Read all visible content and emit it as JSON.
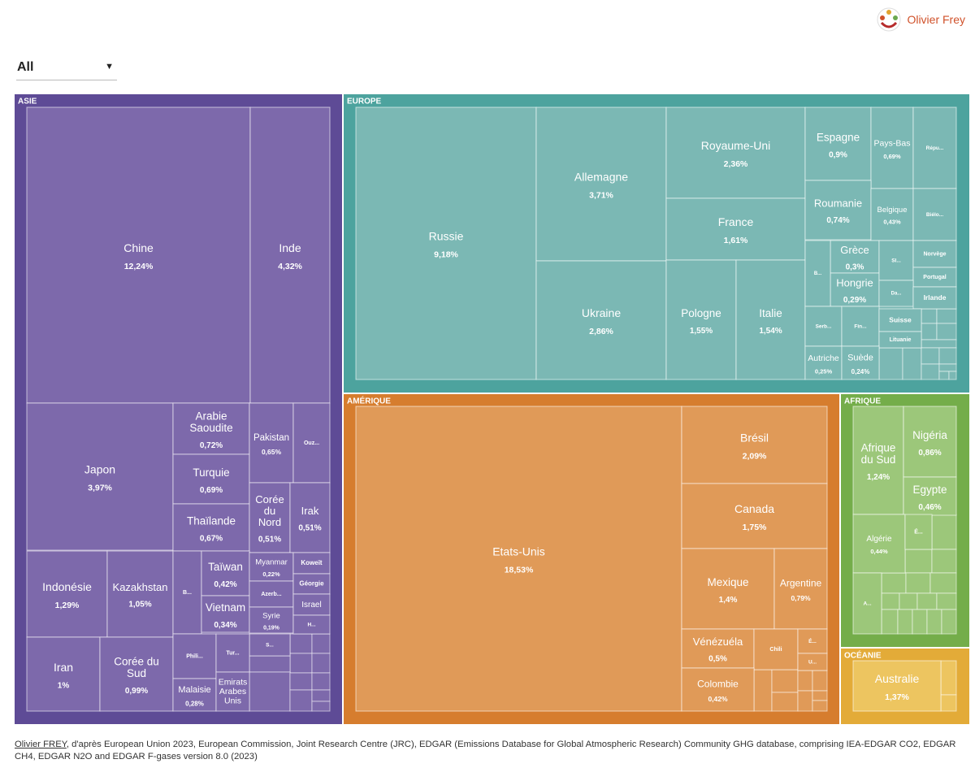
{
  "logo": {
    "text": "Olivier Frey",
    "icon": "people-circle-logo-icon"
  },
  "filter": {
    "value": "All",
    "icon": "caret-down-icon"
  },
  "source": {
    "author": "Olivier FREY",
    "text": ", d'après European Union 2023, European Commission, Joint Research Centre (JRC), EDGAR (Emissions Database for Global Atmospheric Research) Community GHG database, comprising IEA-EDGAR CO2, EDGAR CH4, EDGAR N2O and EDGAR F-gases version 8.0 (2023)"
  },
  "colors": {
    "asie_header": "#5e4b96",
    "asie_tile": "#7d69ab",
    "europe_header": "#4da39e",
    "europe_tile": "#7bb8b4",
    "amerique_header": "#d67d2e",
    "amerique_tile": "#e09a58",
    "afrique_header": "#74ad4a",
    "afrique_tile": "#9cc77a",
    "oceanie_header": "#e3ab38",
    "oceanie_tile": "#edc560"
  },
  "chart_data": {
    "type": "treemap",
    "value_unit": "% share",
    "groups": [
      {
        "name": "ASIE",
        "color_key": "asie",
        "items": [
          {
            "label": "Chine",
            "value": "12,24%"
          },
          {
            "label": "Inde",
            "value": "4,32%"
          },
          {
            "label": "Japon",
            "value": "3,97%"
          },
          {
            "label": "Arabie Saoudite",
            "value": "0,72%"
          },
          {
            "label": "Turquie",
            "value": "0,69%"
          },
          {
            "label": "Thaïlande",
            "value": "0,67%"
          },
          {
            "label": "Pakistan",
            "value": "0,65%"
          },
          {
            "label": "Ouz...",
            "value": ""
          },
          {
            "label": "Corée du Nord",
            "value": "0,51%"
          },
          {
            "label": "Irak",
            "value": "0,51%"
          },
          {
            "label": "Indonésie",
            "value": "1,29%"
          },
          {
            "label": "Kazakhstan",
            "value": "1,05%"
          },
          {
            "label": "Iran",
            "value": "1%"
          },
          {
            "label": "Corée du Sud",
            "value": "0,99%"
          },
          {
            "label": "B...",
            "value": ""
          },
          {
            "label": "Taïwan",
            "value": "0,42%"
          },
          {
            "label": "Vietnam",
            "value": "0,34%"
          },
          {
            "label": "Myanmar",
            "value": "0,22%"
          },
          {
            "label": "Azerb...",
            "value": ""
          },
          {
            "label": "Syrie",
            "value": "0,19%"
          },
          {
            "label": "Koweït",
            "value": ""
          },
          {
            "label": "Géorgie",
            "value": ""
          },
          {
            "label": "Israel",
            "value": ""
          },
          {
            "label": "H...",
            "value": ""
          },
          {
            "label": "S...",
            "value": ""
          },
          {
            "label": "Phili...",
            "value": ""
          },
          {
            "label": "Tur...",
            "value": ""
          },
          {
            "label": "Malaisie",
            "value": "0,28%"
          },
          {
            "label": "Emirats Arabes Unis",
            "value": ""
          }
        ]
      },
      {
        "name": "EUROPE",
        "color_key": "europe",
        "items": [
          {
            "label": "Russie",
            "value": "9,18%"
          },
          {
            "label": "Allemagne",
            "value": "3,71%"
          },
          {
            "label": "Ukraine",
            "value": "2,86%"
          },
          {
            "label": "Royaume-Uni",
            "value": "2,36%"
          },
          {
            "label": "France",
            "value": "1,61%"
          },
          {
            "label": "Pologne",
            "value": "1,55%"
          },
          {
            "label": "Italie",
            "value": "1,54%"
          },
          {
            "label": "Espagne",
            "value": "0,9%"
          },
          {
            "label": "Pays-Bas",
            "value": "0,69%"
          },
          {
            "label": "Répu...",
            "value": ""
          },
          {
            "label": "Roumanie",
            "value": "0,74%"
          },
          {
            "label": "Belgique",
            "value": "0,43%"
          },
          {
            "label": "Biélo...",
            "value": ""
          },
          {
            "label": "Grèce",
            "value": "0,3%"
          },
          {
            "label": "Hongrie",
            "value": "0,29%"
          },
          {
            "label": "B...",
            "value": ""
          },
          {
            "label": "Sl...",
            "value": ""
          },
          {
            "label": "Norvège",
            "value": ""
          },
          {
            "label": "Portugal",
            "value": ""
          },
          {
            "label": "Da...",
            "value": ""
          },
          {
            "label": "Irlande",
            "value": ""
          },
          {
            "label": "Serb...",
            "value": ""
          },
          {
            "label": "Fin...",
            "value": ""
          },
          {
            "label": "Suisse",
            "value": ""
          },
          {
            "label": "Lituanie",
            "value": ""
          },
          {
            "label": "Autriche",
            "value": "0,25%"
          },
          {
            "label": "Suède",
            "value": "0,24%"
          }
        ]
      },
      {
        "name": "AMÉRIQUE",
        "color_key": "amerique",
        "items": [
          {
            "label": "Etats-Unis",
            "value": "18,53%"
          },
          {
            "label": "Brésil",
            "value": "2,09%"
          },
          {
            "label": "Canada",
            "value": "1,75%"
          },
          {
            "label": "Mexique",
            "value": "1,4%"
          },
          {
            "label": "Argentine",
            "value": "0,79%"
          },
          {
            "label": "Vénézuéla",
            "value": "0,5%"
          },
          {
            "label": "Chili",
            "value": ""
          },
          {
            "label": "É...",
            "value": ""
          },
          {
            "label": "U...",
            "value": ""
          },
          {
            "label": "Colombie",
            "value": "0,42%"
          }
        ]
      },
      {
        "name": "AFRIQUE",
        "color_key": "afrique",
        "items": [
          {
            "label": "Afrique du Sud",
            "value": "1,24%"
          },
          {
            "label": "Nigéria",
            "value": "0,86%"
          },
          {
            "label": "Egypte",
            "value": "0,46%"
          },
          {
            "label": "Algérie",
            "value": "0,44%"
          },
          {
            "label": "É...",
            "value": ""
          },
          {
            "label": "A...",
            "value": ""
          }
        ]
      },
      {
        "name": "OCÉANIE",
        "color_key": "oceanie",
        "items": [
          {
            "label": "Australie",
            "value": "1,37%"
          }
        ]
      }
    ]
  }
}
